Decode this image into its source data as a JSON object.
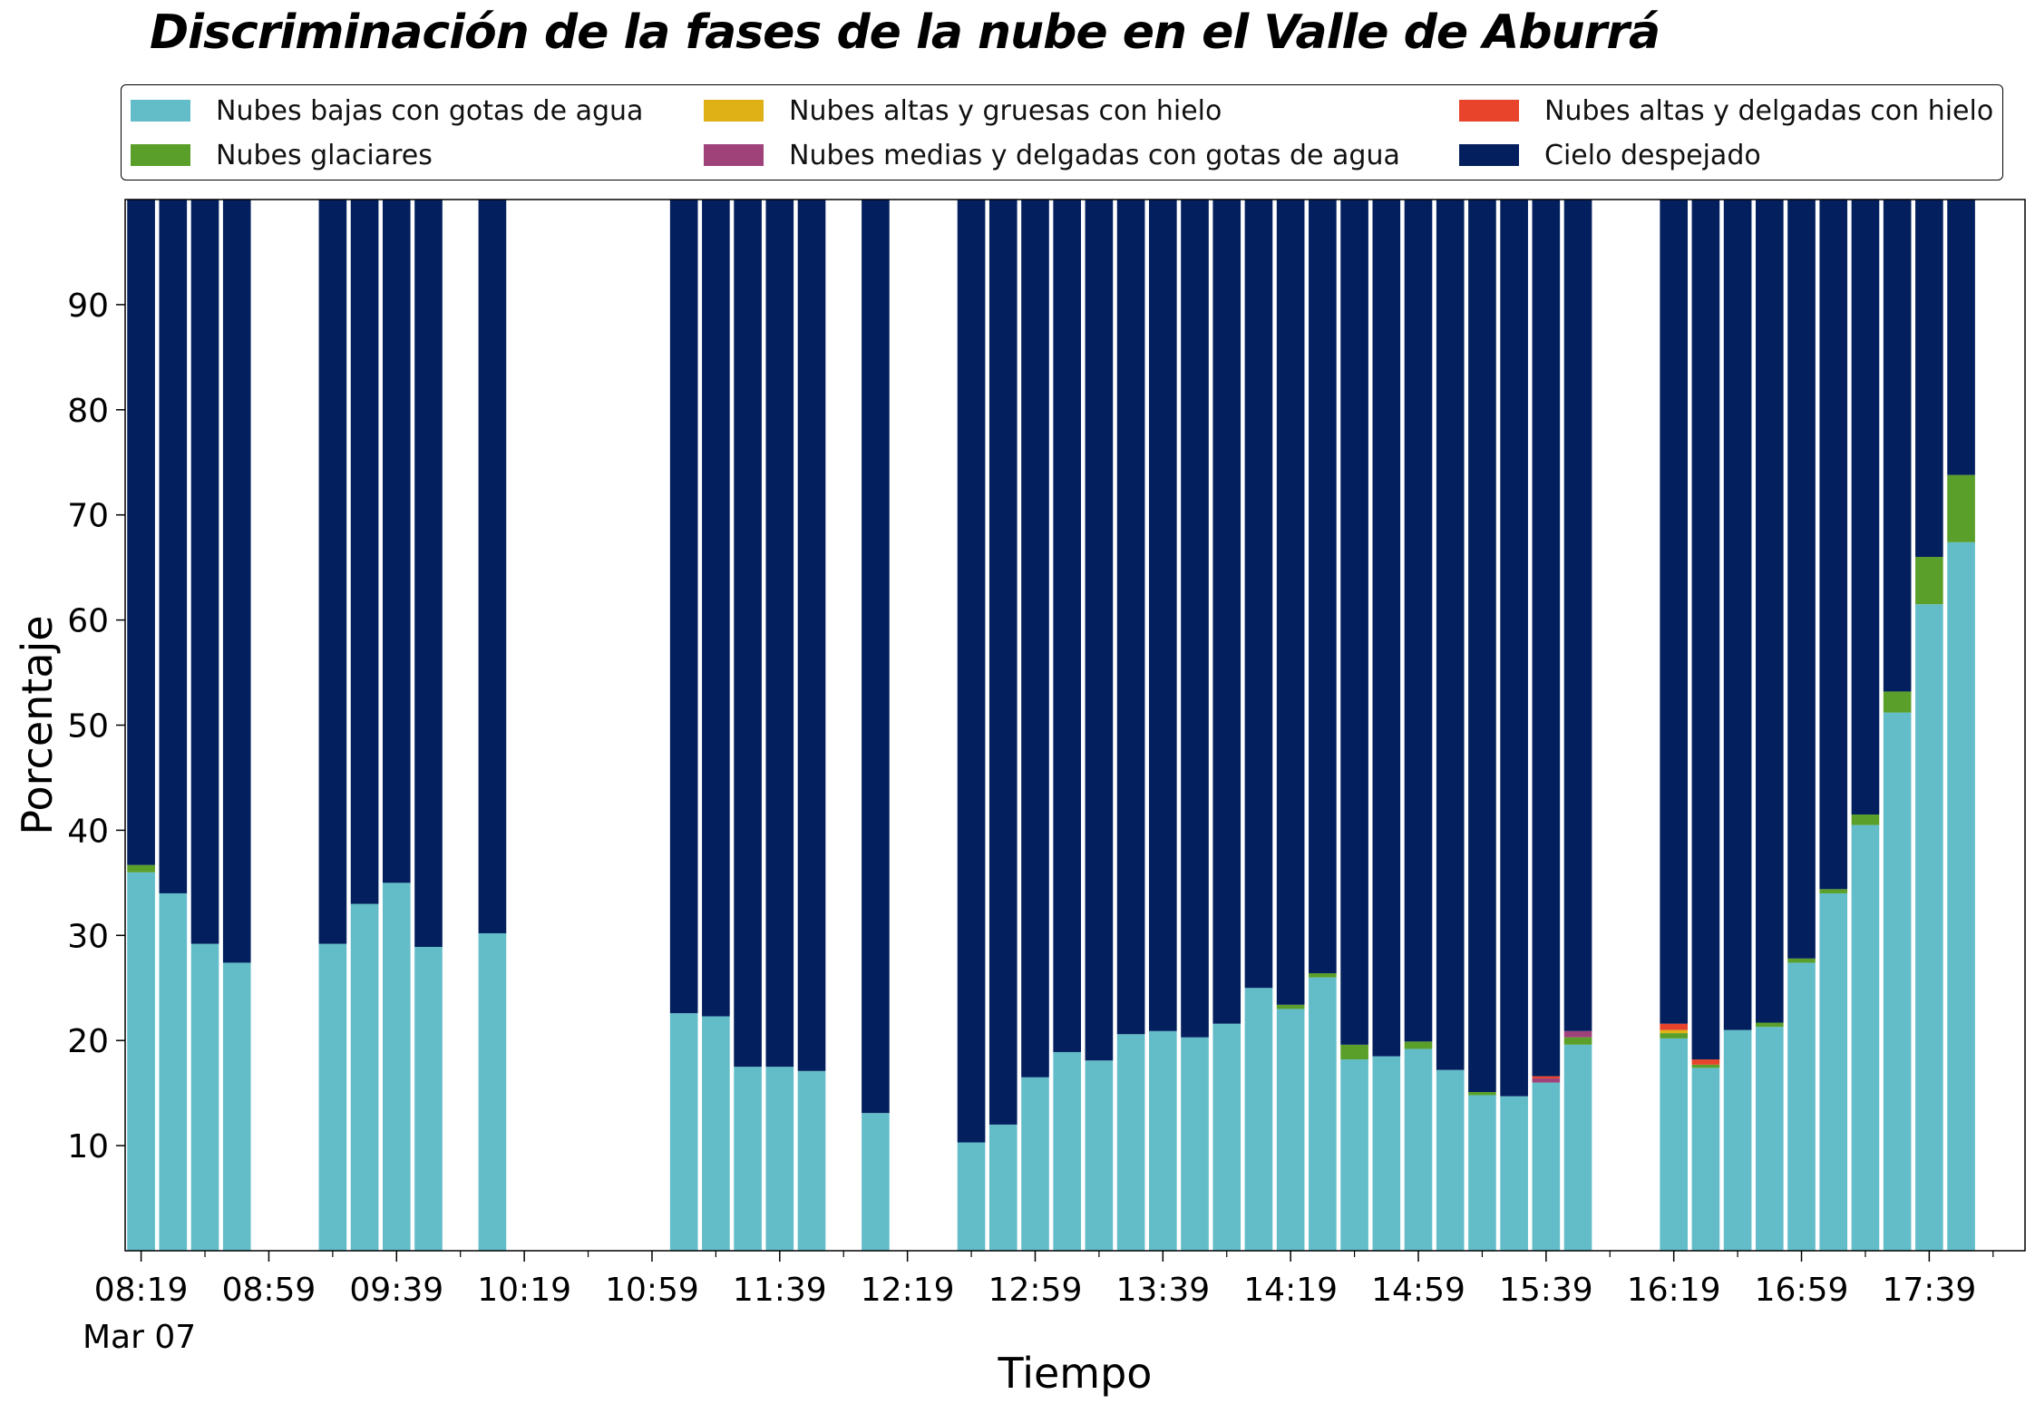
{
  "chart_data": {
    "type": "bar",
    "stacked": true,
    "title": "Discriminación de la fases de la nube en el Valle de Aburrá",
    "xlabel": "Tiempo",
    "ylabel": "Porcentaje",
    "ylim": [
      0,
      100
    ],
    "yticks": [
      10,
      20,
      30,
      40,
      50,
      60,
      70,
      80,
      90
    ],
    "xlim": [
      "08:14",
      "18:09"
    ],
    "date_label": "Mar 07",
    "x_tick_labels": [
      "08:19",
      "08:59",
      "09:39",
      "10:19",
      "10:59",
      "11:39",
      "12:19",
      "12:59",
      "13:39",
      "14:19",
      "14:59",
      "15:39",
      "16:19",
      "16:59",
      "17:39"
    ],
    "x_minor_ticks": [
      "08:39",
      "09:19",
      "09:59",
      "10:39",
      "11:19",
      "11:59",
      "12:39",
      "13:19",
      "13:59",
      "14:39",
      "15:19",
      "15:59",
      "16:39",
      "17:19",
      "17:59"
    ],
    "legend_position": "top",
    "grid": false,
    "categories": [
      "08:19",
      "08:29",
      "08:39",
      "08:49",
      "09:19",
      "09:29",
      "09:39",
      "09:49",
      "10:09",
      "11:09",
      "11:19",
      "11:29",
      "11:39",
      "11:49",
      "12:09",
      "12:39",
      "12:49",
      "12:59",
      "13:09",
      "13:19",
      "13:29",
      "13:39",
      "13:49",
      "13:59",
      "14:09",
      "14:19",
      "14:29",
      "14:39",
      "14:49",
      "14:59",
      "15:09",
      "15:19",
      "15:29",
      "15:39",
      "15:49",
      "16:19",
      "16:29",
      "16:39",
      "16:49",
      "16:59",
      "17:09",
      "17:19",
      "17:29",
      "17:39",
      "17:49"
    ],
    "series": [
      {
        "name": "Nubes bajas con gotas de agua",
        "color": "#63BDC9",
        "values": [
          36.0,
          34.0,
          29.2,
          27.4,
          29.2,
          33.0,
          35.0,
          28.9,
          30.2,
          22.6,
          22.3,
          17.5,
          17.5,
          17.1,
          13.1,
          10.3,
          12.0,
          16.5,
          18.9,
          18.1,
          20.6,
          20.9,
          20.3,
          21.6,
          25.0,
          23.0,
          26.0,
          18.2,
          18.5,
          19.2,
          17.2,
          14.8,
          14.7,
          16.0,
          19.6,
          20.2,
          17.4,
          21.0,
          21.3,
          27.4,
          34.0,
          40.5,
          51.2,
          61.5,
          67.4
        ]
      },
      {
        "name": "Nubes glaciares",
        "color": "#5A9F2A",
        "values": [
          0.7,
          0,
          0,
          0,
          0,
          0,
          0,
          0,
          0,
          0,
          0,
          0,
          0,
          0,
          0,
          0,
          0,
          0,
          0,
          0,
          0,
          0,
          0,
          0,
          0,
          0.4,
          0.4,
          1.4,
          0,
          0.7,
          0,
          0.3,
          0,
          0,
          0.7,
          0.5,
          0.3,
          0,
          0.4,
          0.4,
          0.4,
          1.0,
          2.0,
          4.5,
          6.4
        ]
      },
      {
        "name": "Nubes altas y gruesas con hielo",
        "color": "#E0B116",
        "values": [
          0,
          0,
          0,
          0,
          0,
          0,
          0,
          0,
          0,
          0,
          0,
          0,
          0,
          0,
          0,
          0,
          0,
          0,
          0,
          0,
          0,
          0,
          0,
          0,
          0,
          0,
          0,
          0,
          0,
          0,
          0,
          0,
          0,
          0,
          0,
          0.3,
          0,
          0,
          0,
          0,
          0,
          0,
          0,
          0,
          0
        ]
      },
      {
        "name": "Nubes medias y delgadas con gotas de agua",
        "color": "#A0427A",
        "values": [
          0,
          0,
          0,
          0,
          0,
          0,
          0,
          0,
          0,
          0,
          0,
          0,
          0,
          0,
          0,
          0,
          0,
          0,
          0,
          0,
          0,
          0,
          0,
          0,
          0,
          0,
          0,
          0,
          0,
          0,
          0,
          0,
          0,
          0.4,
          0.6,
          0,
          0,
          0,
          0,
          0,
          0,
          0,
          0,
          0,
          0
        ]
      },
      {
        "name": "Nubes altas y delgadas con hielo",
        "color": "#E8432B",
        "values": [
          0,
          0,
          0,
          0,
          0,
          0,
          0,
          0,
          0,
          0,
          0,
          0,
          0,
          0,
          0,
          0,
          0,
          0,
          0,
          0,
          0,
          0,
          0,
          0,
          0,
          0,
          0,
          0,
          0,
          0,
          0,
          0,
          0,
          0.2,
          0,
          0.6,
          0.5,
          0,
          0,
          0,
          0,
          0,
          0,
          0,
          0
        ]
      },
      {
        "name": "Cielo despejado",
        "color": "#031F5E",
        "values": [
          63.3,
          66.0,
          70.8,
          72.6,
          70.8,
          67.0,
          65.0,
          71.1,
          69.8,
          77.4,
          77.7,
          82.5,
          82.5,
          82.9,
          86.9,
          89.7,
          88.0,
          83.5,
          81.1,
          81.9,
          79.4,
          79.1,
          79.7,
          78.4,
          75.0,
          76.6,
          73.6,
          80.4,
          81.5,
          80.1,
          82.8,
          84.9,
          85.3,
          83.4,
          79.1,
          78.4,
          81.8,
          79.0,
          78.3,
          72.2,
          65.6,
          58.5,
          46.8,
          34.0,
          26.2
        ]
      }
    ],
    "legend_layout": [
      "Nubes bajas con gotas de agua",
      "Nubes glaciares",
      "Nubes altas y gruesas con hielo",
      "Nubes medias y delgadas con gotas de agua",
      "Nubes altas y delgadas con hielo",
      "Cielo despejado"
    ]
  }
}
